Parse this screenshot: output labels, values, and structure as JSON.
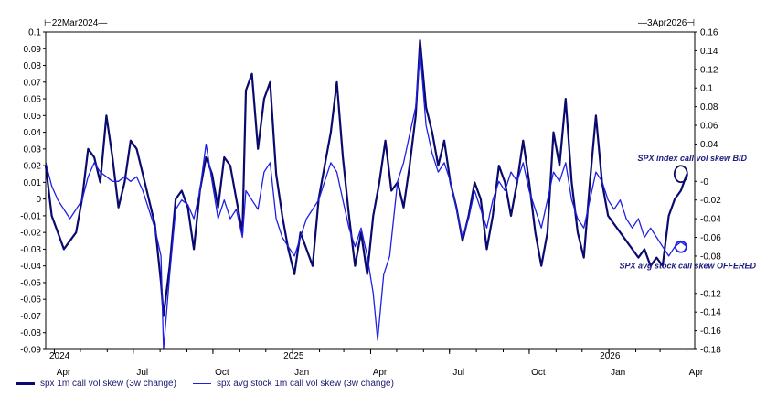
{
  "header": {
    "start_date": "22Mar2024",
    "end_date": "3Apr2026"
  },
  "chart_data": {
    "type": "line",
    "title": "",
    "xlabel": "",
    "ylabel": "",
    "x_ticks": [
      "Apr",
      "Jul",
      "Oct",
      "Jan",
      "Apr",
      "Jul",
      "Oct",
      "Jan",
      "Apr"
    ],
    "year_labels": [
      "2024",
      "2025",
      "2026"
    ],
    "left_axis": {
      "ylim": [
        -0.09,
        0.1
      ],
      "ticks": [
        "0.1",
        "0.09",
        "0.08",
        "0.07",
        "0.06",
        "0.05",
        "0.04",
        "0.03",
        "0.02",
        "0.01",
        "0",
        "-0.01",
        "-0.02",
        "-0.03",
        "-0.04",
        "-0.05",
        "-0.06",
        "-0.07",
        "-0.08",
        "-0.09"
      ]
    },
    "right_axis": {
      "ylim": [
        -0.18,
        0.16
      ],
      "ticks": [
        "0.16",
        "0.14",
        "0.12",
        "0.1",
        "0.08",
        "0.06",
        "0.04",
        "-0",
        "-0.02",
        "-0.04",
        "-0.06",
        "-0.08",
        "-0.12",
        "-0.14",
        "-0.16",
        "-0.18"
      ]
    },
    "series": [
      {
        "name": "spx 1m call vol skew (3w change)",
        "color": "#0a0a6e",
        "axis": "left",
        "points": [
          [
            "2024-03-22",
            0.02
          ],
          [
            "2024-03-29",
            -0.01
          ],
          [
            "2024-04-05",
            -0.02
          ],
          [
            "2024-04-12",
            -0.03
          ],
          [
            "2024-04-19",
            -0.025
          ],
          [
            "2024-04-26",
            -0.02
          ],
          [
            "2024-05-03",
            0.0
          ],
          [
            "2024-05-10",
            0.03
          ],
          [
            "2024-05-17",
            0.025
          ],
          [
            "2024-05-24",
            0.01
          ],
          [
            "2024-05-31",
            0.05
          ],
          [
            "2024-06-07",
            0.025
          ],
          [
            "2024-06-14",
            -0.005
          ],
          [
            "2024-06-21",
            0.01
          ],
          [
            "2024-06-28",
            0.035
          ],
          [
            "2024-07-05",
            0.03
          ],
          [
            "2024-07-12",
            0.015
          ],
          [
            "2024-07-19",
            0.0
          ],
          [
            "2024-07-26",
            -0.015
          ],
          [
            "2024-08-02",
            -0.05
          ],
          [
            "2024-08-05",
            -0.07
          ],
          [
            "2024-08-12",
            -0.04
          ],
          [
            "2024-08-19",
            0.0
          ],
          [
            "2024-08-26",
            0.005
          ],
          [
            "2024-09-02",
            -0.005
          ],
          [
            "2024-09-09",
            -0.03
          ],
          [
            "2024-09-16",
            0.005
          ],
          [
            "2024-09-23",
            0.025
          ],
          [
            "2024-09-30",
            0.015
          ],
          [
            "2024-10-07",
            -0.005
          ],
          [
            "2024-10-14",
            0.025
          ],
          [
            "2024-10-21",
            0.02
          ],
          [
            "2024-10-28",
            0.0
          ],
          [
            "2024-11-04",
            -0.02
          ],
          [
            "2024-11-08",
            0.065
          ],
          [
            "2024-11-15",
            0.075
          ],
          [
            "2024-11-22",
            0.03
          ],
          [
            "2024-11-29",
            0.06
          ],
          [
            "2024-12-06",
            0.07
          ],
          [
            "2024-12-13",
            0.015
          ],
          [
            "2024-12-20",
            -0.01
          ],
          [
            "2024-12-27",
            -0.03
          ],
          [
            "2025-01-03",
            -0.045
          ],
          [
            "2025-01-10",
            -0.02
          ],
          [
            "2025-01-17",
            -0.03
          ],
          [
            "2025-01-24",
            -0.04
          ],
          [
            "2025-01-31",
            0.0
          ],
          [
            "2025-02-07",
            0.02
          ],
          [
            "2025-02-14",
            0.04
          ],
          [
            "2025-02-21",
            0.07
          ],
          [
            "2025-02-28",
            0.025
          ],
          [
            "2025-03-07",
            -0.01
          ],
          [
            "2025-03-14",
            -0.04
          ],
          [
            "2025-03-21",
            -0.02
          ],
          [
            "2025-03-28",
            -0.045
          ],
          [
            "2025-04-04",
            -0.01
          ],
          [
            "2025-04-11",
            0.01
          ],
          [
            "2025-04-18",
            0.035
          ],
          [
            "2025-04-25",
            0.005
          ],
          [
            "2025-05-02",
            0.01
          ],
          [
            "2025-05-09",
            -0.005
          ],
          [
            "2025-05-16",
            0.02
          ],
          [
            "2025-05-23",
            0.05
          ],
          [
            "2025-05-28",
            0.095
          ],
          [
            "2025-06-04",
            0.055
          ],
          [
            "2025-06-11",
            0.04
          ],
          [
            "2025-06-18",
            0.02
          ],
          [
            "2025-06-25",
            0.035
          ],
          [
            "2025-07-02",
            0.01
          ],
          [
            "2025-07-09",
            -0.005
          ],
          [
            "2025-07-16",
            -0.025
          ],
          [
            "2025-07-23",
            -0.01
          ],
          [
            "2025-07-30",
            0.01
          ],
          [
            "2025-08-06",
            0.0
          ],
          [
            "2025-08-13",
            -0.03
          ],
          [
            "2025-08-20",
            -0.01
          ],
          [
            "2025-08-27",
            0.02
          ],
          [
            "2025-09-03",
            0.01
          ],
          [
            "2025-09-10",
            -0.01
          ],
          [
            "2025-09-17",
            0.01
          ],
          [
            "2025-09-24",
            0.035
          ],
          [
            "2025-10-01",
            0.01
          ],
          [
            "2025-10-08",
            -0.02
          ],
          [
            "2025-10-15",
            -0.04
          ],
          [
            "2025-10-22",
            -0.02
          ],
          [
            "2025-10-29",
            0.04
          ],
          [
            "2025-11-05",
            0.02
          ],
          [
            "2025-11-12",
            0.06
          ],
          [
            "2025-11-19",
            0.01
          ],
          [
            "2025-11-26",
            -0.02
          ],
          [
            "2025-12-03",
            -0.035
          ],
          [
            "2025-12-10",
            0.01
          ],
          [
            "2025-12-17",
            0.05
          ],
          [
            "2025-12-24",
            0.01
          ],
          [
            "2025-12-31",
            -0.01
          ],
          [
            "2026-01-07",
            -0.015
          ],
          [
            "2026-01-14",
            -0.02
          ],
          [
            "2026-01-21",
            -0.025
          ],
          [
            "2026-01-28",
            -0.03
          ],
          [
            "2026-02-04",
            -0.035
          ],
          [
            "2026-02-11",
            -0.03
          ],
          [
            "2026-02-18",
            -0.04
          ],
          [
            "2026-02-25",
            -0.035
          ],
          [
            "2026-03-04",
            -0.04
          ],
          [
            "2026-03-11",
            -0.01
          ],
          [
            "2026-03-18",
            0.0
          ],
          [
            "2026-03-25",
            0.005
          ],
          [
            "2026-04-01",
            0.015
          ]
        ]
      },
      {
        "name": "spx avg stock 1m call vol skew (3w change)",
        "color": "#1f1fe6",
        "axis": "right",
        "points": [
          [
            "2024-03-22",
            0.02
          ],
          [
            "2024-03-29",
            -0.005
          ],
          [
            "2024-04-05",
            -0.02
          ],
          [
            "2024-04-12",
            -0.03
          ],
          [
            "2024-04-19",
            -0.04
          ],
          [
            "2024-04-26",
            -0.03
          ],
          [
            "2024-05-03",
            -0.02
          ],
          [
            "2024-05-10",
            0.005
          ],
          [
            "2024-05-17",
            0.02
          ],
          [
            "2024-05-24",
            0.01
          ],
          [
            "2024-05-31",
            0.005
          ],
          [
            "2024-06-07",
            0.0
          ],
          [
            "2024-06-14",
            0.0
          ],
          [
            "2024-06-21",
            0.005
          ],
          [
            "2024-06-28",
            0.0
          ],
          [
            "2024-07-05",
            0.005
          ],
          [
            "2024-07-12",
            -0.01
          ],
          [
            "2024-07-19",
            -0.03
          ],
          [
            "2024-07-26",
            -0.05
          ],
          [
            "2024-08-02",
            -0.08
          ],
          [
            "2024-08-05",
            -0.18
          ],
          [
            "2024-08-12",
            -0.1
          ],
          [
            "2024-08-19",
            -0.03
          ],
          [
            "2024-08-26",
            -0.02
          ],
          [
            "2024-09-02",
            -0.025
          ],
          [
            "2024-09-09",
            -0.04
          ],
          [
            "2024-09-16",
            -0.01
          ],
          [
            "2024-09-23",
            0.04
          ],
          [
            "2024-09-30",
            0.0
          ],
          [
            "2024-10-07",
            -0.04
          ],
          [
            "2024-10-14",
            -0.02
          ],
          [
            "2024-10-21",
            -0.04
          ],
          [
            "2024-10-28",
            -0.03
          ],
          [
            "2024-11-04",
            -0.06
          ],
          [
            "2024-11-08",
            -0.01
          ],
          [
            "2024-11-15",
            -0.02
          ],
          [
            "2024-11-22",
            -0.03
          ],
          [
            "2024-11-29",
            0.01
          ],
          [
            "2024-12-06",
            0.02
          ],
          [
            "2024-12-13",
            -0.04
          ],
          [
            "2024-12-20",
            -0.06
          ],
          [
            "2024-12-27",
            -0.07
          ],
          [
            "2025-01-03",
            -0.08
          ],
          [
            "2025-01-10",
            -0.06
          ],
          [
            "2025-01-17",
            -0.04
          ],
          [
            "2025-01-24",
            -0.03
          ],
          [
            "2025-01-31",
            -0.02
          ],
          [
            "2025-02-07",
            0.0
          ],
          [
            "2025-02-14",
            0.02
          ],
          [
            "2025-02-21",
            0.01
          ],
          [
            "2025-02-28",
            -0.02
          ],
          [
            "2025-03-07",
            -0.05
          ],
          [
            "2025-03-14",
            -0.07
          ],
          [
            "2025-03-21",
            -0.05
          ],
          [
            "2025-03-28",
            -0.08
          ],
          [
            "2025-04-04",
            -0.12
          ],
          [
            "2025-04-09",
            -0.17
          ],
          [
            "2025-04-16",
            -0.1
          ],
          [
            "2025-04-23",
            -0.08
          ],
          [
            "2025-05-02",
            0.0
          ],
          [
            "2025-05-09",
            0.02
          ],
          [
            "2025-05-16",
            0.05
          ],
          [
            "2025-05-23",
            0.08
          ],
          [
            "2025-05-28",
            0.14
          ],
          [
            "2025-06-04",
            0.06
          ],
          [
            "2025-06-11",
            0.03
          ],
          [
            "2025-06-18",
            0.01
          ],
          [
            "2025-06-25",
            0.02
          ],
          [
            "2025-07-02",
            0.0
          ],
          [
            "2025-07-09",
            -0.03
          ],
          [
            "2025-07-16",
            -0.06
          ],
          [
            "2025-07-23",
            -0.04
          ],
          [
            "2025-07-30",
            -0.01
          ],
          [
            "2025-08-06",
            -0.03
          ],
          [
            "2025-08-13",
            -0.05
          ],
          [
            "2025-08-20",
            -0.02
          ],
          [
            "2025-08-27",
            0.0
          ],
          [
            "2025-09-03",
            -0.01
          ],
          [
            "2025-09-10",
            0.01
          ],
          [
            "2025-09-17",
            0.0
          ],
          [
            "2025-09-24",
            0.02
          ],
          [
            "2025-10-01",
            -0.01
          ],
          [
            "2025-10-08",
            -0.03
          ],
          [
            "2025-10-15",
            -0.05
          ],
          [
            "2025-10-22",
            -0.02
          ],
          [
            "2025-10-29",
            0.01
          ],
          [
            "2025-11-05",
            0.0
          ],
          [
            "2025-11-12",
            0.02
          ],
          [
            "2025-11-19",
            -0.02
          ],
          [
            "2025-11-26",
            -0.04
          ],
          [
            "2025-12-03",
            -0.05
          ],
          [
            "2025-12-10",
            -0.02
          ],
          [
            "2025-12-17",
            0.01
          ],
          [
            "2025-12-24",
            0.0
          ],
          [
            "2025-12-31",
            -0.02
          ],
          [
            "2026-01-07",
            -0.03
          ],
          [
            "2026-01-14",
            -0.02
          ],
          [
            "2026-01-21",
            -0.04
          ],
          [
            "2026-01-28",
            -0.05
          ],
          [
            "2026-02-04",
            -0.04
          ],
          [
            "2026-02-11",
            -0.06
          ],
          [
            "2026-02-18",
            -0.05
          ],
          [
            "2026-02-25",
            -0.06
          ],
          [
            "2026-03-04",
            -0.07
          ],
          [
            "2026-03-11",
            -0.08
          ],
          [
            "2026-03-18",
            -0.07
          ],
          [
            "2026-03-25",
            -0.065
          ],
          [
            "2026-04-01",
            -0.07
          ]
        ]
      }
    ],
    "annotations": [
      {
        "text": "SPX index call vol skew BID",
        "series": 0,
        "date": "2026-03-25",
        "value": 0.015,
        "color": "#0a0a5e"
      },
      {
        "text": "SPX avg stock call skew OFFERED",
        "series": 1,
        "date": "2026-03-25",
        "value": -0.07,
        "color": "#1f1fe6"
      }
    ],
    "grid": false,
    "legend_position": "bottom-left"
  }
}
